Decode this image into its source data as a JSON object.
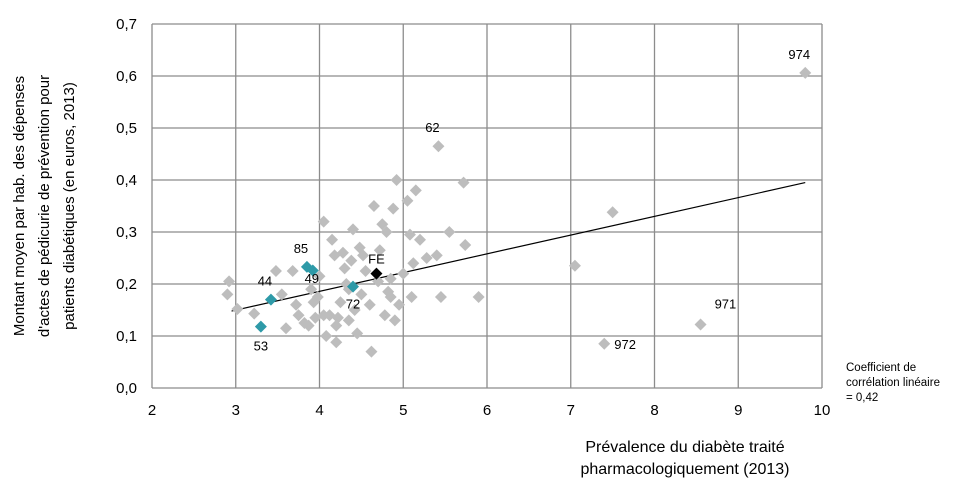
{
  "chart_data": {
    "type": "scatter",
    "xlabel": [
      "Prévalence du diabète traité",
      "pharmacologiquement (2013)"
    ],
    "ylabel": [
      "Montant moyen par hab. des dépenses",
      "d'actes de pédicurie de prévention pour",
      "patients diabétiques (en euros, 2013)"
    ],
    "xlim": [
      2,
      10
    ],
    "ylim": [
      0,
      0.7
    ],
    "xticks": [
      2,
      3,
      4,
      5,
      6,
      7,
      8,
      9,
      10
    ],
    "yticks": [
      "0,0",
      "0,1",
      "0,2",
      "0,3",
      "0,4",
      "0,5",
      "0,6",
      "0,7"
    ],
    "grid": true,
    "colors": {
      "default": "#bdbdbd",
      "highlight": "#2e9aa8",
      "france": "#000000",
      "trend": "#000000"
    },
    "trendline": {
      "x": [
        2.95,
        9.8
      ],
      "y": [
        0.148,
        0.395
      ]
    },
    "annotation": [
      "Coefficient de",
      "corrélation linéaire",
      " = 0,42"
    ],
    "points": [
      {
        "x": 2.9,
        "y": 0.18
      },
      {
        "x": 2.92,
        "y": 0.205
      },
      {
        "x": 3.02,
        "y": 0.152
      },
      {
        "x": 3.22,
        "y": 0.143
      },
      {
        "x": 3.48,
        "y": 0.225
      },
      {
        "x": 3.55,
        "y": 0.18
      },
      {
        "x": 3.6,
        "y": 0.115
      },
      {
        "x": 3.68,
        "y": 0.225
      },
      {
        "x": 3.72,
        "y": 0.16
      },
      {
        "x": 3.75,
        "y": 0.14
      },
      {
        "x": 3.82,
        "y": 0.125
      },
      {
        "x": 3.87,
        "y": 0.12
      },
      {
        "x": 3.9,
        "y": 0.19
      },
      {
        "x": 3.93,
        "y": 0.165
      },
      {
        "x": 4.0,
        "y": 0.215
      },
      {
        "x": 4.05,
        "y": 0.32
      },
      {
        "x": 4.08,
        "y": 0.1
      },
      {
        "x": 4.12,
        "y": 0.14
      },
      {
        "x": 4.15,
        "y": 0.285
      },
      {
        "x": 4.18,
        "y": 0.255
      },
      {
        "x": 4.2,
        "y": 0.088
      },
      {
        "x": 4.22,
        "y": 0.135
      },
      {
        "x": 4.25,
        "y": 0.165
      },
      {
        "x": 4.28,
        "y": 0.26
      },
      {
        "x": 4.3,
        "y": 0.23
      },
      {
        "x": 4.32,
        "y": 0.2
      },
      {
        "x": 4.35,
        "y": 0.13
      },
      {
        "x": 4.38,
        "y": 0.245
      },
      {
        "x": 4.4,
        "y": 0.305
      },
      {
        "x": 4.42,
        "y": 0.15
      },
      {
        "x": 4.45,
        "y": 0.105
      },
      {
        "x": 4.48,
        "y": 0.27
      },
      {
        "x": 4.5,
        "y": 0.18
      },
      {
        "x": 4.52,
        "y": 0.255
      },
      {
        "x": 4.55,
        "y": 0.225
      },
      {
        "x": 4.6,
        "y": 0.16
      },
      {
        "x": 4.62,
        "y": 0.07
      },
      {
        "x": 4.65,
        "y": 0.35
      },
      {
        "x": 4.7,
        "y": 0.205
      },
      {
        "x": 4.72,
        "y": 0.265
      },
      {
        "x": 4.75,
        "y": 0.315
      },
      {
        "x": 4.78,
        "y": 0.14
      },
      {
        "x": 4.8,
        "y": 0.3
      },
      {
        "x": 4.82,
        "y": 0.185
      },
      {
        "x": 4.85,
        "y": 0.175
      },
      {
        "x": 4.88,
        "y": 0.345
      },
      {
        "x": 4.9,
        "y": 0.13
      },
      {
        "x": 4.92,
        "y": 0.4
      },
      {
        "x": 4.95,
        "y": 0.16
      },
      {
        "x": 5.0,
        "y": 0.22
      },
      {
        "x": 5.05,
        "y": 0.36
      },
      {
        "x": 5.08,
        "y": 0.295
      },
      {
        "x": 5.1,
        "y": 0.175
      },
      {
        "x": 5.12,
        "y": 0.24
      },
      {
        "x": 5.15,
        "y": 0.38
      },
      {
        "x": 5.2,
        "y": 0.285
      },
      {
        "x": 5.28,
        "y": 0.25
      },
      {
        "x": 5.4,
        "y": 0.255
      },
      {
        "x": 5.45,
        "y": 0.175
      },
      {
        "x": 5.55,
        "y": 0.3
      },
      {
        "x": 5.72,
        "y": 0.395
      },
      {
        "x": 5.74,
        "y": 0.275
      },
      {
        "x": 5.9,
        "y": 0.175
      },
      {
        "x": 7.05,
        "y": 0.235
      },
      {
        "x": 7.5,
        "y": 0.338
      },
      {
        "x": 4.2,
        "y": 0.12
      },
      {
        "x": 4.05,
        "y": 0.14
      },
      {
        "x": 3.95,
        "y": 0.135
      },
      {
        "x": 4.35,
        "y": 0.19
      },
      {
        "x": 4.85,
        "y": 0.21
      }
    ],
    "labeled_points": [
      {
        "label": "974",
        "x": 9.8,
        "y": 0.606,
        "kind": "default",
        "anchor": "above-left"
      },
      {
        "label": "62",
        "x": 5.42,
        "y": 0.465,
        "kind": "default",
        "anchor": "above-left"
      },
      {
        "label": "971",
        "x": 8.55,
        "y": 0.122,
        "kind": "default",
        "anchor": "above-right"
      },
      {
        "label": "972",
        "x": 7.4,
        "y": 0.085,
        "kind": "default",
        "anchor": "right"
      },
      {
        "label": "85",
        "x": 3.85,
        "y": 0.233,
        "kind": "highlight",
        "anchor": "above-left"
      },
      {
        "label": "",
        "x": 3.92,
        "y": 0.226,
        "kind": "highlight",
        "anchor": "none"
      },
      {
        "label": "44",
        "x": 3.42,
        "y": 0.17,
        "kind": "highlight",
        "anchor": "above-left"
      },
      {
        "label": "49",
        "x": 3.98,
        "y": 0.175,
        "kind": "default",
        "anchor": "above-left"
      },
      {
        "label": "72",
        "x": 4.4,
        "y": 0.195,
        "kind": "highlight",
        "anchor": "below"
      },
      {
        "label": "53",
        "x": 3.3,
        "y": 0.118,
        "kind": "highlight",
        "anchor": "below-left"
      },
      {
        "label": "FE",
        "x": 4.68,
        "y": 0.22,
        "kind": "france",
        "anchor": "above"
      }
    ]
  }
}
